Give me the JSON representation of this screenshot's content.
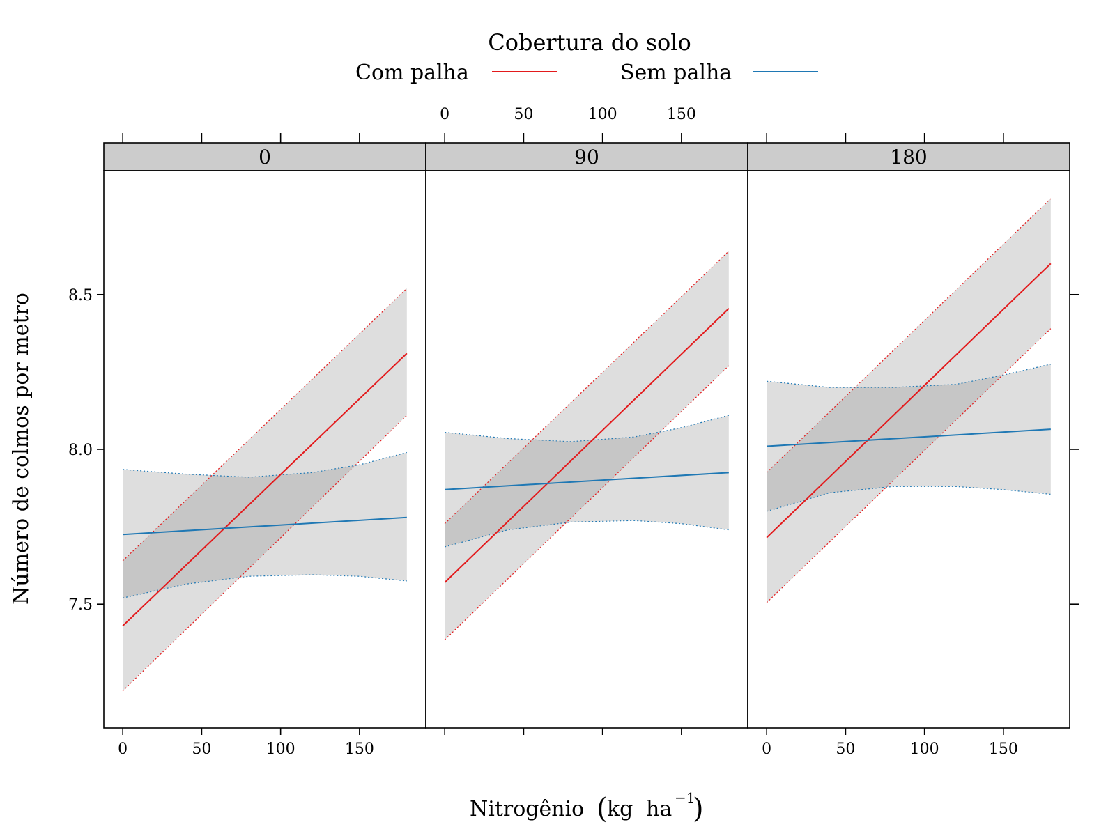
{
  "chart_data": {
    "type": "line",
    "legend": {
      "title": "Cobertura do solo",
      "placement": "top",
      "entries": [
        {
          "name": "Com palha",
          "color": "#e31a1c"
        },
        {
          "name": "Sem palha",
          "color": "#1f78b4"
        }
      ]
    },
    "xlabel": "Nitrogênio",
    "xlabel_unit": {
      "open": "(",
      "kg": "kg",
      "ha": "ha",
      "exp": "−1",
      "close": ")"
    },
    "ylabel": "Número de colmos por metro",
    "xlim": [
      -12,
      192
    ],
    "ylim": [
      7.1,
      8.9
    ],
    "x_ticks": [
      0,
      50,
      100,
      150
    ],
    "x_tick_labels": [
      "0",
      "50",
      "100",
      "150"
    ],
    "y_ticks": [
      7.5,
      8.0,
      8.5
    ],
    "y_tick_labels": [
      "7.5",
      "8.0",
      "8.5"
    ],
    "band_color": "#dedede",
    "band_overlap_color": "#c6c6c6",
    "panels": [
      {
        "strip": "0",
        "series": [
          {
            "name": "Com palha",
            "x": [
              0,
              180
            ],
            "y": [
              7.43,
              8.31
            ],
            "lower": [
              [
                0,
                7.22
              ],
              [
                180,
                8.11
              ]
            ],
            "upper": [
              [
                0,
                7.64
              ],
              [
                180,
                8.52
              ]
            ]
          },
          {
            "name": "Sem palha",
            "x": [
              0,
              180
            ],
            "y": [
              7.725,
              7.78
            ],
            "lower": [
              [
                0,
                7.52
              ],
              [
                40,
                7.565
              ],
              [
                80,
                7.59
              ],
              [
                120,
                7.595
              ],
              [
                150,
                7.59
              ],
              [
                180,
                7.575
              ]
            ],
            "upper": [
              [
                0,
                7.935
              ],
              [
                40,
                7.92
              ],
              [
                80,
                7.91
              ],
              [
                120,
                7.925
              ],
              [
                150,
                7.95
              ],
              [
                180,
                7.99
              ]
            ]
          }
        ]
      },
      {
        "strip": "90",
        "series": [
          {
            "name": "Com palha",
            "x": [
              0,
              180
            ],
            "y": [
              7.57,
              8.455
            ],
            "lower": [
              [
                0,
                7.385
              ],
              [
                180,
                8.27
              ]
            ],
            "upper": [
              [
                0,
                7.76
              ],
              [
                180,
                8.64
              ]
            ]
          },
          {
            "name": "Sem palha",
            "x": [
              0,
              180
            ],
            "y": [
              7.87,
              7.925
            ],
            "lower": [
              [
                0,
                7.685
              ],
              [
                40,
                7.74
              ],
              [
                80,
                7.765
              ],
              [
                120,
                7.77
              ],
              [
                150,
                7.76
              ],
              [
                180,
                7.74
              ]
            ],
            "upper": [
              [
                0,
                8.055
              ],
              [
                40,
                8.035
              ],
              [
                80,
                8.025
              ],
              [
                120,
                8.04
              ],
              [
                150,
                8.07
              ],
              [
                180,
                8.11
              ]
            ]
          }
        ]
      },
      {
        "strip": "180",
        "series": [
          {
            "name": "Com palha",
            "x": [
              0,
              180
            ],
            "y": [
              7.715,
              8.6
            ],
            "lower": [
              [
                0,
                7.505
              ],
              [
                180,
                8.39
              ]
            ],
            "upper": [
              [
                0,
                7.925
              ],
              [
                180,
                8.81
              ]
            ]
          },
          {
            "name": "Sem palha",
            "x": [
              0,
              180
            ],
            "y": [
              8.01,
              8.065
            ],
            "lower": [
              [
                0,
                7.8
              ],
              [
                40,
                7.86
              ],
              [
                80,
                7.88
              ],
              [
                120,
                7.88
              ],
              [
                150,
                7.87
              ],
              [
                180,
                7.855
              ]
            ],
            "upper": [
              [
                0,
                8.22
              ],
              [
                40,
                8.2
              ],
              [
                80,
                8.2
              ],
              [
                120,
                8.21
              ],
              [
                150,
                8.24
              ],
              [
                180,
                8.275
              ]
            ]
          }
        ]
      }
    ]
  }
}
